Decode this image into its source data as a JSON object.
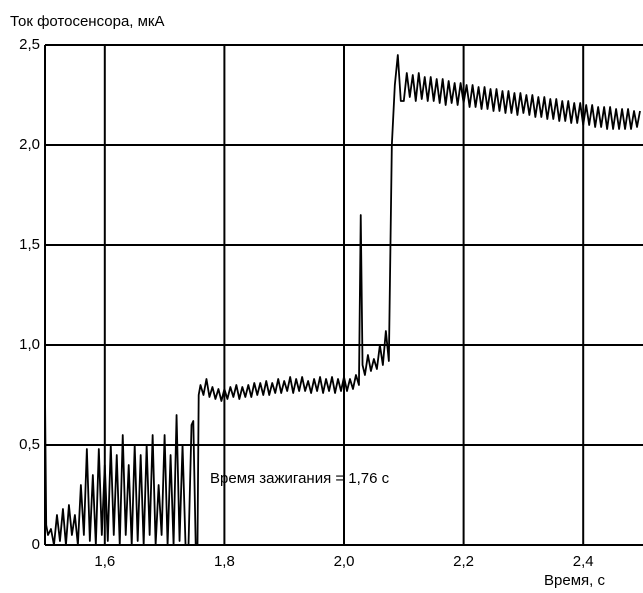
{
  "chart_data": {
    "type": "line",
    "title": "Ток фотосенсора, мкА",
    "x_label": "Время, с",
    "annotation": "Время зажигания = 1,76 с",
    "xlim": [
      1.5,
      2.5
    ],
    "ylim": [
      0,
      2.5
    ],
    "xticks": [
      {
        "value": 1.6,
        "label": "1,6"
      },
      {
        "value": 1.8,
        "label": "1,8"
      },
      {
        "value": 2.0,
        "label": "2,0"
      },
      {
        "value": 2.2,
        "label": "2,2"
      },
      {
        "value": 2.4,
        "label": "2,4"
      }
    ],
    "yticks": [
      0,
      {
        "value": 0.5,
        "label": "0,5"
      },
      {
        "value": 1.0,
        "label": "1,0"
      },
      {
        "value": 1.5,
        "label": "1,5"
      },
      {
        "value": 2.0,
        "label": "2,0"
      },
      {
        "value": 2.5,
        "label": "2,5"
      }
    ],
    "grid": true,
    "series": [
      {
        "color": "#000000",
        "x": [
          1.5,
          1.502,
          1.505,
          1.51,
          1.515,
          1.52,
          1.525,
          1.53,
          1.535,
          1.54,
          1.545,
          1.55,
          1.555,
          1.56,
          1.565,
          1.57,
          1.575,
          1.58,
          1.585,
          1.59,
          1.595,
          1.6,
          1.605,
          1.61,
          1.615,
          1.62,
          1.625,
          1.63,
          1.635,
          1.64,
          1.645,
          1.65,
          1.655,
          1.66,
          1.665,
          1.67,
          1.675,
          1.68,
          1.685,
          1.69,
          1.695,
          1.7,
          1.705,
          1.71,
          1.715,
          1.72,
          1.725,
          1.73,
          1.735,
          1.74,
          1.745,
          1.748,
          1.752,
          1.755,
          1.757,
          1.76,
          1.765,
          1.77,
          1.775,
          1.78,
          1.785,
          1.79,
          1.795,
          1.8,
          1.805,
          1.81,
          1.815,
          1.82,
          1.825,
          1.83,
          1.835,
          1.84,
          1.845,
          1.85,
          1.855,
          1.86,
          1.865,
          1.87,
          1.875,
          1.88,
          1.885,
          1.89,
          1.895,
          1.9,
          1.905,
          1.91,
          1.915,
          1.92,
          1.925,
          1.93,
          1.935,
          1.94,
          1.945,
          1.95,
          1.955,
          1.96,
          1.965,
          1.97,
          1.975,
          1.98,
          1.985,
          1.99,
          1.995,
          2.0,
          2.005,
          2.01,
          2.015,
          2.02,
          2.025,
          2.028,
          2.031,
          2.035,
          2.04,
          2.045,
          2.05,
          2.055,
          2.06,
          2.065,
          2.07,
          2.075,
          2.08,
          2.085,
          2.09,
          2.095,
          2.1,
          2.105,
          2.11,
          2.115,
          2.12,
          2.125,
          2.13,
          2.135,
          2.14,
          2.145,
          2.15,
          2.155,
          2.16,
          2.165,
          2.17,
          2.175,
          2.18,
          2.185,
          2.19,
          2.195,
          2.2,
          2.205,
          2.21,
          2.215,
          2.22,
          2.225,
          2.23,
          2.235,
          2.24,
          2.245,
          2.25,
          2.255,
          2.26,
          2.265,
          2.27,
          2.275,
          2.28,
          2.285,
          2.29,
          2.295,
          2.3,
          2.305,
          2.31,
          2.315,
          2.32,
          2.325,
          2.33,
          2.335,
          2.34,
          2.345,
          2.35,
          2.355,
          2.36,
          2.365,
          2.37,
          2.375,
          2.38,
          2.385,
          2.39,
          2.395,
          2.4,
          2.405,
          2.41,
          2.415,
          2.42,
          2.425,
          2.43,
          2.435,
          2.44,
          2.445,
          2.45,
          2.455,
          2.46,
          2.465,
          2.47,
          2.475,
          2.48,
          2.485,
          2.49,
          2.495
        ],
        "values": [
          0.75,
          0.1,
          0.05,
          0.08,
          0,
          0.15,
          0.02,
          0.18,
          0,
          0.2,
          0.05,
          0.15,
          0,
          0.3,
          0.05,
          0.48,
          0.02,
          0.35,
          0,
          0.48,
          0.05,
          0.4,
          0.02,
          0.5,
          0.05,
          0.45,
          0,
          0.55,
          0.05,
          0.4,
          0,
          0.5,
          0.02,
          0.45,
          0,
          0.5,
          0.05,
          0.55,
          0,
          0.3,
          0.05,
          0.55,
          0,
          0.45,
          0,
          0.65,
          0.02,
          0.5,
          0,
          0,
          0.6,
          0.62,
          0,
          0,
          0.75,
          0.8,
          0.75,
          0.83,
          0.74,
          0.79,
          0.73,
          0.78,
          0.72,
          0.78,
          0.73,
          0.79,
          0.74,
          0.8,
          0.73,
          0.79,
          0.74,
          0.8,
          0.74,
          0.81,
          0.75,
          0.81,
          0.75,
          0.82,
          0.75,
          0.81,
          0.76,
          0.83,
          0.76,
          0.82,
          0.77,
          0.84,
          0.76,
          0.83,
          0.77,
          0.84,
          0.77,
          0.82,
          0.76,
          0.83,
          0.77,
          0.84,
          0.76,
          0.83,
          0.77,
          0.84,
          0.76,
          0.83,
          0.77,
          0.84,
          0.77,
          0.83,
          0.78,
          0.85,
          0.8,
          1.65,
          0.9,
          0.85,
          0.95,
          0.87,
          0.93,
          0.88,
          1.0,
          0.9,
          1.07,
          0.92,
          2.0,
          2.3,
          2.45,
          2.22,
          2.22,
          2.36,
          2.24,
          2.35,
          2.22,
          2.36,
          2.23,
          2.34,
          2.22,
          2.34,
          2.22,
          2.33,
          2.21,
          2.33,
          2.2,
          2.32,
          2.21,
          2.31,
          2.2,
          2.31,
          2.21,
          2.3,
          2.19,
          2.3,
          2.19,
          2.29,
          2.18,
          2.29,
          2.18,
          2.28,
          2.17,
          2.28,
          2.17,
          2.27,
          2.16,
          2.27,
          2.16,
          2.26,
          2.15,
          2.26,
          2.16,
          2.25,
          2.15,
          2.25,
          2.14,
          2.24,
          2.14,
          2.24,
          2.13,
          2.23,
          2.13,
          2.23,
          2.12,
          2.22,
          2.12,
          2.22,
          2.11,
          2.21,
          2.11,
          2.21,
          2.1,
          2.2,
          2.1,
          2.2,
          2.09,
          2.19,
          2.09,
          2.19,
          2.08,
          2.19,
          2.08,
          2.18,
          2.08,
          2.18,
          2.08,
          2.18,
          2.08,
          2.17,
          2.09,
          2.17
        ]
      }
    ]
  }
}
